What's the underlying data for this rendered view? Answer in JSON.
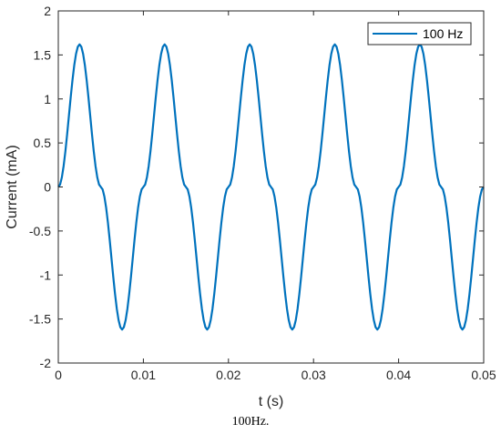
{
  "caption": "100Hz.",
  "chart_data": {
    "type": "line",
    "title": "",
    "xlabel": "t (s)",
    "ylabel": "Current (mA)",
    "xlim": [
      0,
      0.05
    ],
    "ylim": [
      -2,
      2
    ],
    "xticks": [
      0,
      0.01,
      0.02,
      0.03,
      0.04,
      0.05
    ],
    "xtick_labels": [
      "0",
      "0.01",
      "0.02",
      "0.03",
      "0.04",
      "0.05"
    ],
    "yticks": [
      -2,
      -1.5,
      -1,
      -0.5,
      0,
      0.5,
      1,
      1.5,
      2
    ],
    "ytick_labels": [
      "-2",
      "-1.5",
      "-1",
      "-0.5",
      "0",
      "0.5",
      "1",
      "1.5",
      "2"
    ],
    "grid": false,
    "legend_position": "top-right",
    "series": [
      {
        "name": "100 Hz",
        "color": "#0072BD",
        "x": [
          0,
          0.0025,
          0.005,
          0.0075,
          0.01,
          0.0125,
          0.015,
          0.0175,
          0.02,
          0.0225,
          0.025,
          0.0275,
          0.03,
          0.0325,
          0.035,
          0.0375,
          0.04,
          0.0425,
          0.045,
          0.0475,
          0.05
        ],
        "y": [
          0,
          1.62,
          0,
          -1.62,
          0,
          1.62,
          0,
          -1.62,
          0,
          1.62,
          0,
          -1.62,
          0,
          1.62,
          0,
          -1.62,
          0,
          1.62,
          0,
          -1.62,
          0
        ]
      }
    ]
  }
}
